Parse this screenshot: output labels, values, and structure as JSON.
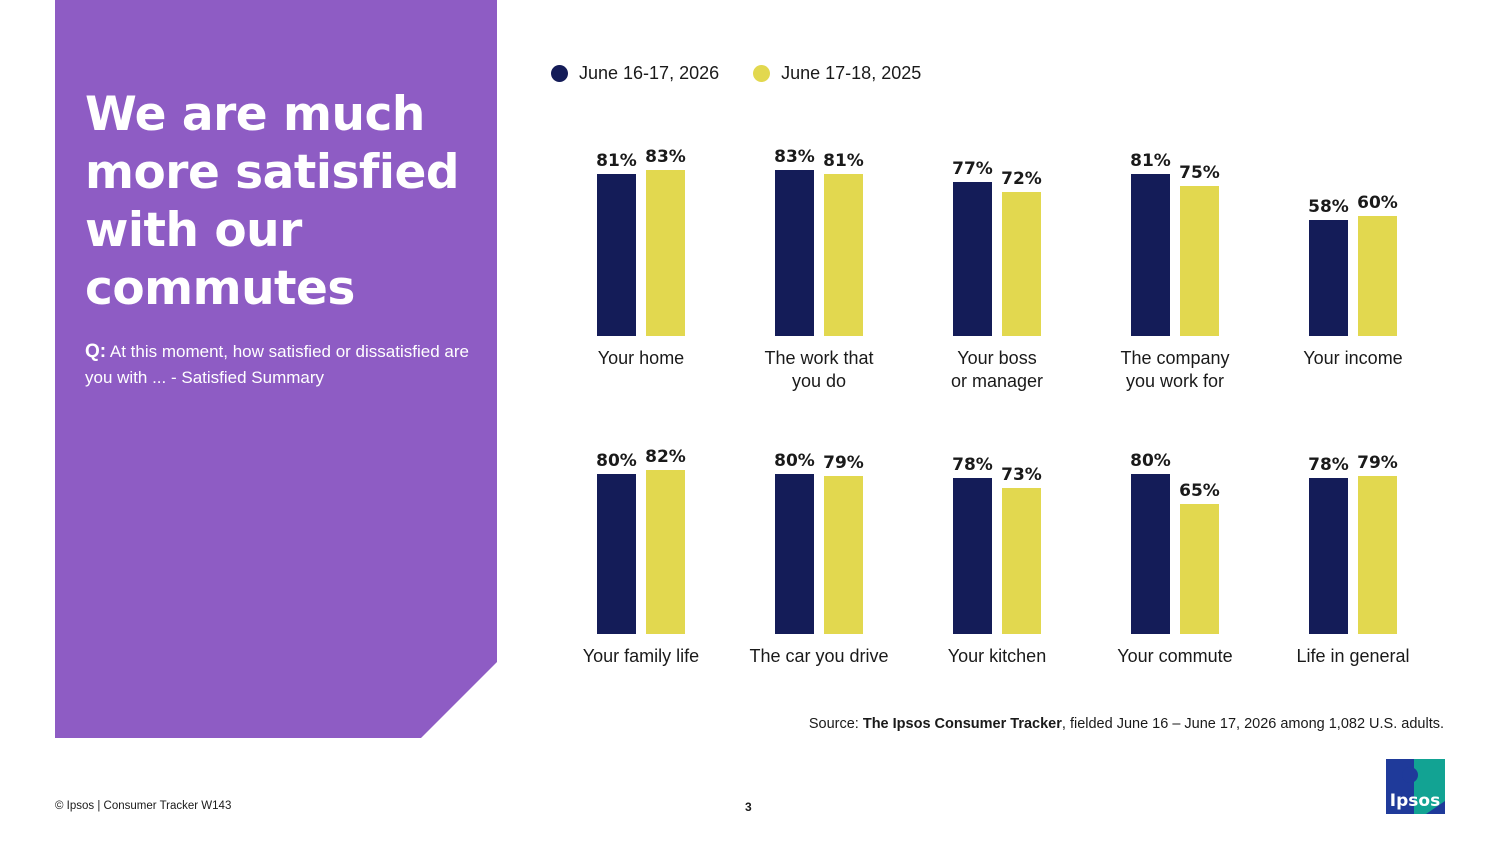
{
  "side_panel": {
    "title": "We are much more satisfied with our commutes",
    "question_prefix": "Q:",
    "question_text": " At this moment, how satisfied or dissatisfied are you with ... - Satisfied Summary"
  },
  "colors": {
    "panel": "#8e5cc4",
    "series_2026": "#141c58",
    "series_2025": "#e2d84f",
    "logo_blue": "#1f3a9a",
    "logo_teal": "#12a393"
  },
  "legend": [
    {
      "label": "June 16-17, 2026",
      "color": "#141c58"
    },
    {
      "label": "June 17-18, 2025",
      "color": "#e2d84f"
    }
  ],
  "chart_data": {
    "type": "bar",
    "value_suffix": "%",
    "ylim": [
      0,
      100
    ],
    "grid": false,
    "legend_position": "top-left",
    "series": [
      {
        "name": "June 16-17, 2026",
        "color": "#141c58",
        "values": [
          81,
          83,
          77,
          81,
          58,
          80,
          80,
          78,
          80,
          78
        ]
      },
      {
        "name": "June 17-18, 2025",
        "color": "#e2d84f",
        "values": [
          83,
          81,
          72,
          75,
          60,
          82,
          79,
          73,
          65,
          79
        ]
      }
    ],
    "categories": [
      [
        "Your home"
      ],
      [
        "The work that",
        "you do"
      ],
      [
        "Your boss",
        "or manager"
      ],
      [
        "The company",
        "you work for"
      ],
      [
        "Your income"
      ],
      [
        "Your family life"
      ],
      [
        "The car you drive"
      ],
      [
        "Your kitchen"
      ],
      [
        "Your commute"
      ],
      [
        "Life in general"
      ]
    ]
  },
  "source": {
    "prefix": "Source: ",
    "bold": "The Ipsos Consumer Tracker",
    "rest": ", fielded June 16 – June 17, 2026 among 1,082 U.S. adults."
  },
  "footer": {
    "copyright": "© Ipsos | Consumer Tracker W143",
    "page_number": "3"
  },
  "logo": {
    "text": "Ipsos"
  }
}
